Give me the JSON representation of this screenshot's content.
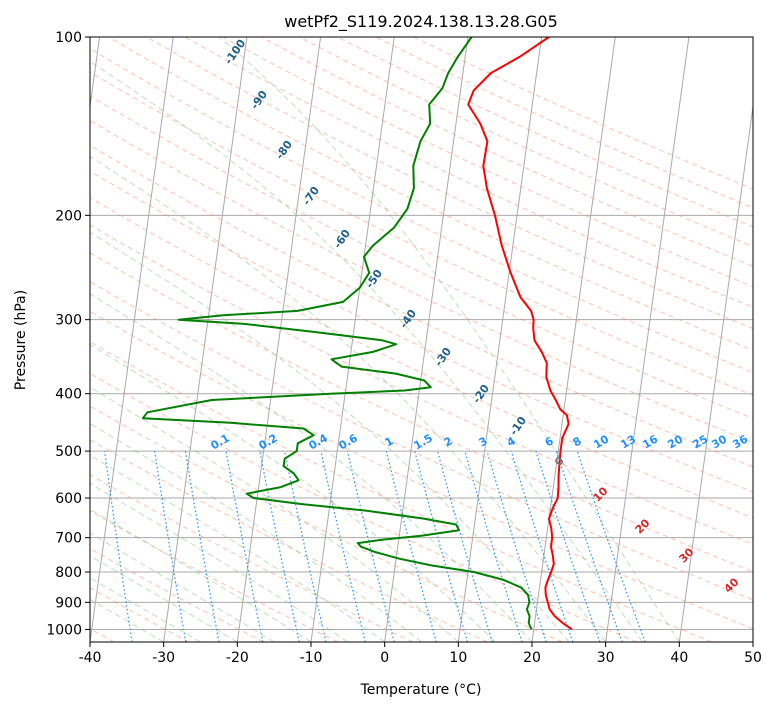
{
  "chart_data": {
    "type": "line",
    "title": "wetPf2_S119.2024.138.13.28.G05",
    "xlabel": "Temperature (°C)",
    "ylabel": "Pressure (hPa)",
    "xlim": [
      -40,
      50
    ],
    "ylim_hpa": [
      1050,
      100
    ],
    "y_scale": "log",
    "grid": true,
    "x_ticks": [
      "-40",
      "-30",
      "-20",
      "-10",
      "0",
      "10",
      "20",
      "30",
      "40",
      "50"
    ],
    "y_ticks": [
      "100",
      "200",
      "300",
      "400",
      "500",
      "600",
      "700",
      "800",
      "900",
      "1000"
    ],
    "dry_adiabat_labels": [
      "-100",
      "-90",
      "-80",
      "-70",
      "-60",
      "-50",
      "-40",
      "-30",
      "-20",
      "-10"
    ],
    "moist_adiabat_labels": [
      "0",
      "10",
      "20",
      "30",
      "40"
    ],
    "mixing_ratio_labels": [
      "0.1",
      "0.2",
      "0.4",
      "0.6",
      "1",
      "1.5",
      "2",
      "3",
      "4",
      "6",
      "8",
      "10",
      "13",
      "16",
      "20",
      "25",
      "30",
      "36"
    ],
    "series": [
      {
        "color": "#ff0000",
        "points": [
          [
            1000,
            25.2
          ],
          [
            975,
            23.8
          ],
          [
            950,
            22.6
          ],
          [
            925,
            21.8
          ],
          [
            900,
            21.4
          ],
          [
            875,
            21.0
          ],
          [
            850,
            20.8
          ],
          [
            825,
            21.0
          ],
          [
            800,
            21.3
          ],
          [
            775,
            21.5
          ],
          [
            750,
            21.2
          ],
          [
            725,
            20.8
          ],
          [
            700,
            20.8
          ],
          [
            675,
            20.5
          ],
          [
            650,
            20.0
          ],
          [
            625,
            20.3
          ],
          [
            600,
            20.8
          ],
          [
            575,
            20.7
          ],
          [
            550,
            20.5
          ],
          [
            525,
            20.4
          ],
          [
            500,
            20.3
          ],
          [
            475,
            20.3
          ],
          [
            450,
            20.9
          ],
          [
            435,
            20.5
          ],
          [
            425,
            19.5
          ],
          [
            410,
            18.7
          ],
          [
            395,
            17.8
          ],
          [
            375,
            17.0
          ],
          [
            355,
            16.8
          ],
          [
            340,
            15.9
          ],
          [
            325,
            14.7
          ],
          [
            310,
            14.3
          ],
          [
            300,
            14.2
          ],
          [
            290,
            13.7
          ],
          [
            275,
            12.0
          ],
          [
            250,
            10.2
          ],
          [
            225,
            8.5
          ],
          [
            200,
            7.0
          ],
          [
            180,
            5.4
          ],
          [
            165,
            4.5
          ],
          [
            150,
            4.6
          ],
          [
            140,
            3.3
          ],
          [
            130,
            1.3
          ],
          [
            123,
            1.8
          ],
          [
            115,
            3.8
          ],
          [
            108,
            7.4
          ],
          [
            100,
            11.0
          ]
        ]
      },
      {
        "color": "#008000",
        "points": [
          [
            1000,
            19.7
          ],
          [
            975,
            19.2
          ],
          [
            950,
            19.2
          ],
          [
            925,
            18.7
          ],
          [
            900,
            18.9
          ],
          [
            875,
            18.6
          ],
          [
            850,
            17.5
          ],
          [
            825,
            15.0
          ],
          [
            800,
            10.8
          ],
          [
            780,
            5.0
          ],
          [
            760,
            0.5
          ],
          [
            740,
            -3.0
          ],
          [
            725,
            -5.0
          ],
          [
            715,
            -5.5
          ],
          [
            705,
            -2.0
          ],
          [
            695,
            3.0
          ],
          [
            680,
            8.0
          ],
          [
            665,
            7.5
          ],
          [
            650,
            3.0
          ],
          [
            630,
            -5.0
          ],
          [
            615,
            -13.5
          ],
          [
            600,
            -20.5
          ],
          [
            590,
            -21.5
          ],
          [
            575,
            -17.0
          ],
          [
            560,
            -14.7
          ],
          [
            545,
            -15.5
          ],
          [
            530,
            -17.0
          ],
          [
            515,
            -17.0
          ],
          [
            500,
            -15.5
          ],
          [
            485,
            -15.5
          ],
          [
            470,
            -13.5
          ],
          [
            458,
            -15.0
          ],
          [
            448,
            -25.0
          ],
          [
            440,
            -37.0
          ],
          [
            430,
            -36.5
          ],
          [
            410,
            -28.0
          ],
          [
            400,
            -12.0
          ],
          [
            395,
            -2.0
          ],
          [
            390,
            1.5
          ],
          [
            380,
            0.5
          ],
          [
            370,
            -3.5
          ],
          [
            360,
            -11.0
          ],
          [
            350,
            -12.5
          ],
          [
            340,
            -7.0
          ],
          [
            330,
            -4.0
          ],
          [
            325,
            -6.0
          ],
          [
            315,
            -15.0
          ],
          [
            305,
            -25.0
          ],
          [
            300,
            -34.0
          ],
          [
            295,
            -28.0
          ],
          [
            290,
            -18.0
          ],
          [
            280,
            -12.0
          ],
          [
            265,
            -10.0
          ],
          [
            250,
            -9.0
          ],
          [
            235,
            -10.0
          ],
          [
            225,
            -9.0
          ],
          [
            210,
            -6.5
          ],
          [
            195,
            -5.0
          ],
          [
            180,
            -4.5
          ],
          [
            165,
            -5.0
          ],
          [
            150,
            -4.5
          ],
          [
            140,
            -3.5
          ],
          [
            130,
            -4.0
          ],
          [
            122,
            -2.5
          ],
          [
            115,
            -2.0
          ],
          [
            108,
            -1.0
          ],
          [
            100,
            0.5
          ]
        ]
      }
    ]
  }
}
